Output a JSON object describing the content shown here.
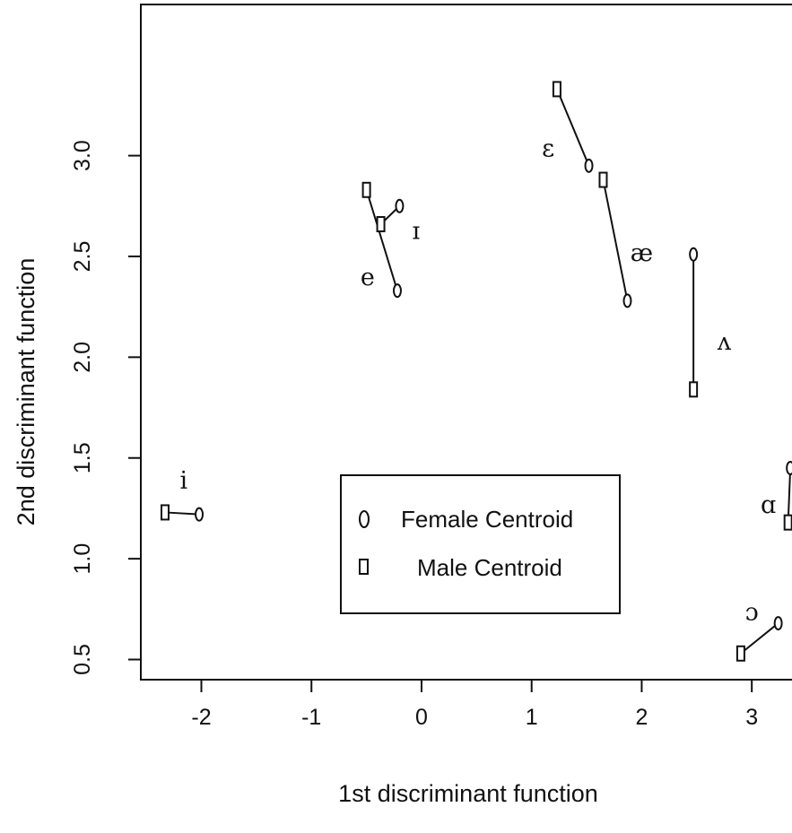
{
  "chart_data": {
    "type": "scatter",
    "xlabel": "1st discriminant function",
    "ylabel": "2nd discriminant function",
    "xlim": [
      -2.55,
      3.52
    ],
    "ylim": [
      0.4,
      3.75
    ],
    "xticks": [
      -2,
      -1,
      0,
      1,
      2,
      3
    ],
    "yticks": [
      0.5,
      1.0,
      1.5,
      2.0,
      2.5,
      3.0
    ],
    "xtick_labels": [
      "-2",
      "-1",
      "0",
      "1",
      "2",
      "3"
    ],
    "ytick_labels": [
      "0.5",
      "1.0",
      "1.5",
      "2.0",
      "2.5",
      "3.0"
    ],
    "grid": false,
    "legend_position": "center",
    "legend": [
      {
        "symbol": "0",
        "label": "Female Centroid"
      },
      {
        "symbol": "▯",
        "label": "Male Centroid"
      }
    ],
    "series": [
      {
        "name": "Female Centroid",
        "points": [
          {
            "vowel": "i",
            "x": -2.02,
            "y": 1.22
          },
          {
            "vowel": "ɪ",
            "x": -0.2,
            "y": 2.75
          },
          {
            "vowel": "e",
            "x": -0.22,
            "y": 2.33
          },
          {
            "vowel": "ɛ",
            "x": 1.52,
            "y": 2.95
          },
          {
            "vowel": "æ",
            "x": 1.87,
            "y": 2.28
          },
          {
            "vowel": "ʌ",
            "x": 2.47,
            "y": 2.51
          },
          {
            "vowel": "ɑ",
            "x": 3.35,
            "y": 1.45
          },
          {
            "vowel": "ɔ",
            "x": 3.24,
            "y": 0.68
          }
        ]
      },
      {
        "name": "Male Centroid",
        "points": [
          {
            "vowel": "i",
            "x": -2.33,
            "y": 1.23
          },
          {
            "vowel": "ɪ",
            "x": -0.37,
            "y": 2.66
          },
          {
            "vowel": "e",
            "x": -0.5,
            "y": 2.83
          },
          {
            "vowel": "ɛ",
            "x": 1.23,
            "y": 3.33
          },
          {
            "vowel": "æ",
            "x": 1.65,
            "y": 2.88
          },
          {
            "vowel": "ʌ",
            "x": 2.47,
            "y": 1.84
          },
          {
            "vowel": "ɑ",
            "x": 3.33,
            "y": 1.18
          },
          {
            "vowel": "ɔ",
            "x": 2.9,
            "y": 0.53
          }
        ]
      }
    ],
    "vowel_labels": [
      {
        "text": "i",
        "x": -2.16,
        "y": 1.38
      },
      {
        "text": "ɪ",
        "x": -0.05,
        "y": 2.62
      },
      {
        "text": "e",
        "x": -0.49,
        "y": 2.39
      },
      {
        "text": "ɛ",
        "x": 1.15,
        "y": 3.03
      },
      {
        "text": "æ",
        "x": 2.0,
        "y": 2.51
      },
      {
        "text": "ʌ",
        "x": 2.75,
        "y": 2.07
      },
      {
        "text": "ɑ",
        "x": 3.15,
        "y": 1.26
      },
      {
        "text": "ɔ",
        "x": 3.0,
        "y": 0.73
      }
    ]
  }
}
